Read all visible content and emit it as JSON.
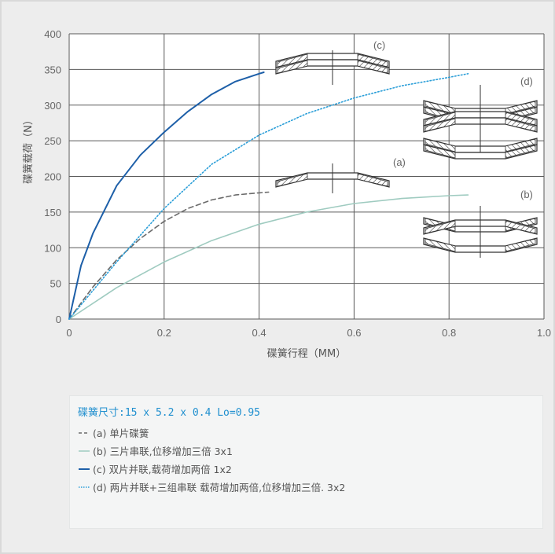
{
  "chart_data": {
    "type": "line",
    "xlabel": "碟簧行程（MM）",
    "ylabel": "碟簧载荷（N）",
    "xlim": [
      0,
      1.0
    ],
    "ylim": [
      0,
      400
    ],
    "xticks": [
      "0",
      "0.2",
      "0.4",
      "0.6",
      "0.8",
      "1.0"
    ],
    "yticks": [
      "0",
      "50",
      "100",
      "150",
      "200",
      "250",
      "300",
      "350",
      "400"
    ],
    "grid": true,
    "series": [
      {
        "tag": "(a)",
        "style": "dashed",
        "color": "#6b6b6b",
        "x": [
          0,
          0.05,
          0.1,
          0.15,
          0.2,
          0.25,
          0.3,
          0.35,
          0.4,
          0.42
        ],
        "y": [
          0,
          45,
          83,
          113,
          137,
          155,
          167,
          174,
          177,
          178
        ]
      },
      {
        "tag": "(b)",
        "style": "solid",
        "color": "#9fcbc0",
        "x": [
          0,
          0.1,
          0.2,
          0.3,
          0.4,
          0.5,
          0.6,
          0.7,
          0.8,
          0.84
        ],
        "y": [
          0,
          44,
          80,
          110,
          133,
          150,
          162,
          169,
          173,
          174
        ]
      },
      {
        "tag": "(c)",
        "style": "solid",
        "color": "#1d5fa8",
        "x": [
          0,
          0.025,
          0.05,
          0.1,
          0.15,
          0.2,
          0.25,
          0.3,
          0.35,
          0.4,
          0.41
        ],
        "y": [
          0,
          75,
          120,
          187,
          230,
          262,
          291,
          315,
          333,
          344,
          346
        ]
      },
      {
        "tag": "(d)",
        "style": "dotted",
        "color": "#2a9ed8",
        "x": [
          0,
          0.1,
          0.2,
          0.3,
          0.4,
          0.5,
          0.6,
          0.7,
          0.8,
          0.84
        ],
        "y": [
          0,
          80,
          155,
          217,
          258,
          288,
          310,
          327,
          339,
          344
        ]
      }
    ]
  },
  "legend": {
    "title": "碟簧尺寸:15 x 5.2 x 0.4 Lo=0.95",
    "items": [
      {
        "text": "(a) 单片碟簧",
        "style": "dashed",
        "color": "#6b6b6b"
      },
      {
        "text": "(b) 三片串联,位移增加三倍 3x1",
        "style": "solid",
        "color": "#9fcbc0"
      },
      {
        "text": "(c) 双片并联,载荷增加两倍 1x2",
        "style": "solid",
        "color": "#1d5fa8"
      },
      {
        "text": "(d) 两片并联+三组串联 载荷增加两倍,位移增加三倍. 3x2",
        "style": "dotted",
        "color": "#2a9ed8"
      }
    ]
  },
  "diagram_tags": {
    "a": "(a)",
    "b": "(b)",
    "c": "(c)",
    "d": "(d)"
  }
}
